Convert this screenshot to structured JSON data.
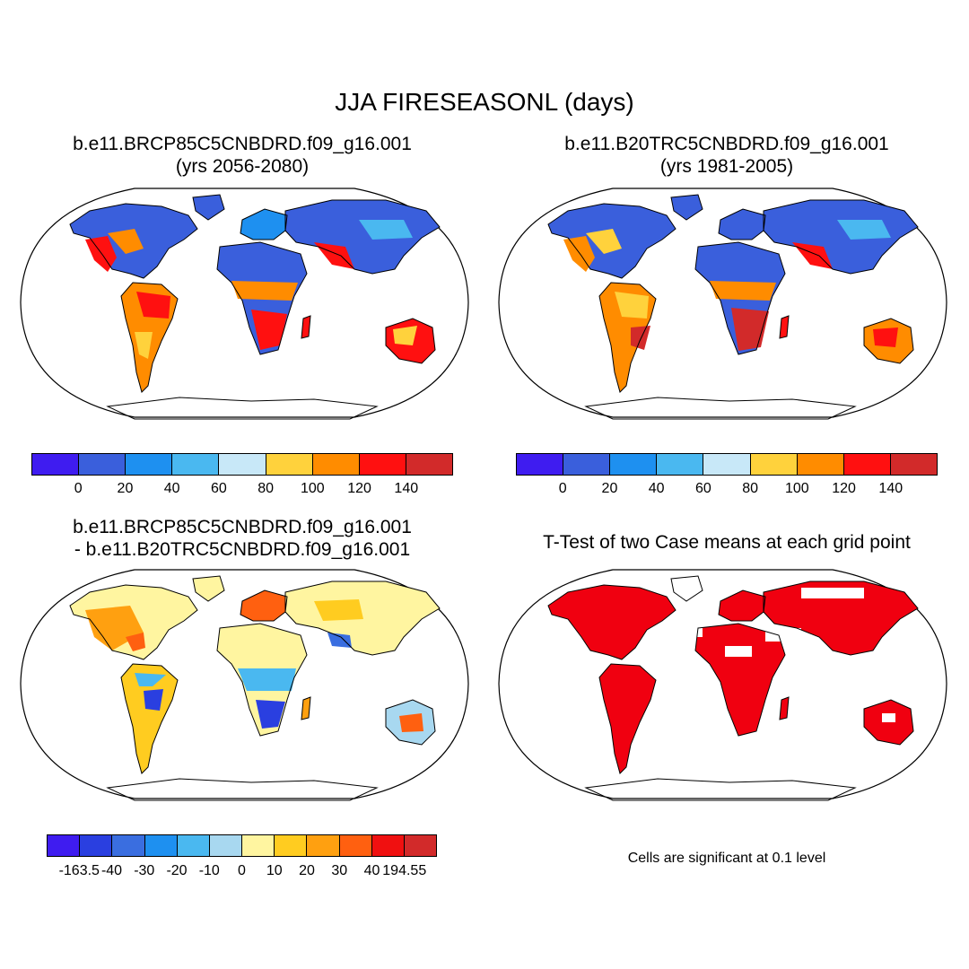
{
  "title": "JJA FIRESEASONL (days)",
  "panels": [
    {
      "id": "future",
      "title_line1": "b.e11.BRCP85C5CNBDRD.f09_g16.001",
      "title_line2": "(yrs 2056-2080)"
    },
    {
      "id": "historical",
      "title_line1": "b.e11.B20TRC5CNBDRD.f09_g16.001",
      "title_line2": "(yrs 1981-2005)"
    },
    {
      "id": "difference",
      "title_line1": "b.e11.BRCP85C5CNBDRD.f09_g16.001",
      "title_line2": "- b.e11.B20TRC5CNBDRD.f09_g16.001"
    },
    {
      "id": "ttest",
      "title_line1": "T-Test of two Case means at each grid point"
    }
  ],
  "colorbar_top": {
    "colors": [
      "#3f1cf0",
      "#3a5fdc",
      "#1e90f0",
      "#4ab8f0",
      "#c8e8f8",
      "#ffd23c",
      "#ff8c00",
      "#ff1010",
      "#d22a2a"
    ],
    "labels": [
      "0",
      "20",
      "40",
      "60",
      "80",
      "100",
      "120",
      "140"
    ]
  },
  "colorbar_diff": {
    "colors": [
      "#3f1cf0",
      "#2a3fe0",
      "#3a6ee0",
      "#1e90f0",
      "#4ab8f0",
      "#a8d8f0",
      "#fff5a0",
      "#ffcc20",
      "#ffa010",
      "#ff6010",
      "#f01010",
      "#d22a2a"
    ],
    "labels": [
      "-163.5",
      "-40",
      "-30",
      "-20",
      "-10",
      "0",
      "10",
      "20",
      "30",
      "40",
      "194.55"
    ]
  },
  "significance_note": "Cells are significant at 0.1 level",
  "significance_color": "#f00010"
}
